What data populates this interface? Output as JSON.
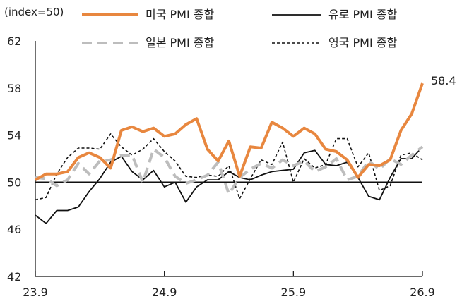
{
  "chart_data": {
    "type": "line",
    "unit_label": "(index=50)",
    "ylim": [
      42,
      62
    ],
    "y_ticks": [
      42,
      46,
      50,
      54,
      58,
      62
    ],
    "x_range": [
      0,
      36
    ],
    "x_ticks": [
      {
        "pos": 0,
        "label": "23.9"
      },
      {
        "pos": 12,
        "label": "24.9"
      },
      {
        "pos": 24,
        "label": "25.9"
      },
      {
        "pos": 36,
        "label": "26.9"
      }
    ],
    "baseline": 50,
    "grid": false,
    "legend_position": "top",
    "annotation": {
      "series": 0,
      "text": "58.4"
    },
    "series": [
      {
        "name": "미국 PMI 종합",
        "color": "#E8873F",
        "style": "thick-solid",
        "x": [
          0,
          1,
          2,
          3,
          4,
          5,
          6,
          7,
          8,
          9,
          10,
          11,
          12,
          13,
          14,
          15,
          16,
          17,
          18,
          19,
          20,
          21,
          22,
          23,
          24,
          25,
          26,
          27,
          28,
          29,
          30,
          31,
          32,
          33,
          34,
          35,
          36
        ],
        "values": [
          50.2,
          50.7,
          50.7,
          50.9,
          52.1,
          52.5,
          52.1,
          51.2,
          54.4,
          54.7,
          54.3,
          54.6,
          53.9,
          54.1,
          54.9,
          55.4,
          52.8,
          51.8,
          53.5,
          50.5,
          53.0,
          52.9,
          55.1,
          54.6,
          53.9,
          54.6,
          54.1,
          52.8,
          52.6,
          51.9,
          50.4,
          51.5,
          51.4,
          51.9,
          54.4,
          55.8,
          58.4
        ]
      },
      {
        "name": "유로 PMI 종합",
        "color": "#111111",
        "style": "solid",
        "x": [
          0,
          1,
          2,
          3,
          4,
          5,
          6,
          7,
          8,
          9,
          10,
          11,
          12,
          13,
          14,
          15,
          16,
          17,
          18,
          19,
          20,
          21,
          22,
          23,
          24,
          25,
          26,
          27,
          28,
          29,
          30,
          31,
          32,
          33,
          34,
          35,
          36
        ],
        "values": [
          47.2,
          46.5,
          47.6,
          47.6,
          47.9,
          49.2,
          50.3,
          51.7,
          52.2,
          50.9,
          50.2,
          51.0,
          49.6,
          50.0,
          48.3,
          49.6,
          50.2,
          50.2,
          50.9,
          50.4,
          50.2,
          50.6,
          50.9,
          51.0,
          51.1,
          52.5,
          52.7,
          51.5,
          51.4,
          51.7,
          50.4,
          48.8,
          48.5,
          50.4,
          52.0,
          52.0,
          53.0
        ]
      },
      {
        "name": "일본 PMI 종합",
        "color": "#BDBDBD",
        "style": "thick-dashed",
        "x": [
          0,
          1,
          2,
          3,
          4,
          5,
          6,
          7,
          8,
          9,
          10,
          11,
          12,
          13,
          14,
          15,
          16,
          17,
          18,
          19,
          20,
          21,
          22,
          23,
          24,
          25,
          26,
          27,
          28,
          29,
          30,
          31,
          32,
          33,
          34,
          35,
          36
        ],
        "values": [
          50.4,
          50.3,
          49.7,
          50.2,
          51.6,
          50.7,
          51.8,
          51.9,
          52.3,
          52.3,
          50.0,
          52.8,
          52.1,
          50.5,
          49.9,
          50.2,
          50.6,
          51.7,
          49.0,
          50.4,
          51.1,
          51.6,
          51.2,
          51.9,
          51.4,
          51.8,
          50.9,
          51.3,
          52.0,
          50.2,
          50.5,
          51.8,
          51.1,
          52.0,
          51.5,
          52.3,
          53.0
        ]
      },
      {
        "name": "영국 PMI 종합",
        "color": "#111111",
        "style": "dashed",
        "x": [
          0,
          1,
          2,
          3,
          4,
          5,
          6,
          7,
          8,
          9,
          10,
          11,
          12,
          13,
          14,
          15,
          16,
          17,
          18,
          19,
          20,
          21,
          22,
          23,
          24,
          25,
          26,
          27,
          28,
          29,
          30,
          31,
          32,
          33,
          34,
          35,
          36
        ],
        "values": [
          48.5,
          48.7,
          50.7,
          52.1,
          52.9,
          52.9,
          52.8,
          54.1,
          53.0,
          52.3,
          52.8,
          53.7,
          52.6,
          51.8,
          50.5,
          50.4,
          50.6,
          50.5,
          51.4,
          48.6,
          50.3,
          51.9,
          51.5,
          53.4,
          50.0,
          52.0,
          51.2,
          51.5,
          53.7,
          53.7,
          51.3,
          52.5,
          49.3,
          49.7,
          52.3,
          52.5,
          51.9
        ]
      }
    ]
  }
}
